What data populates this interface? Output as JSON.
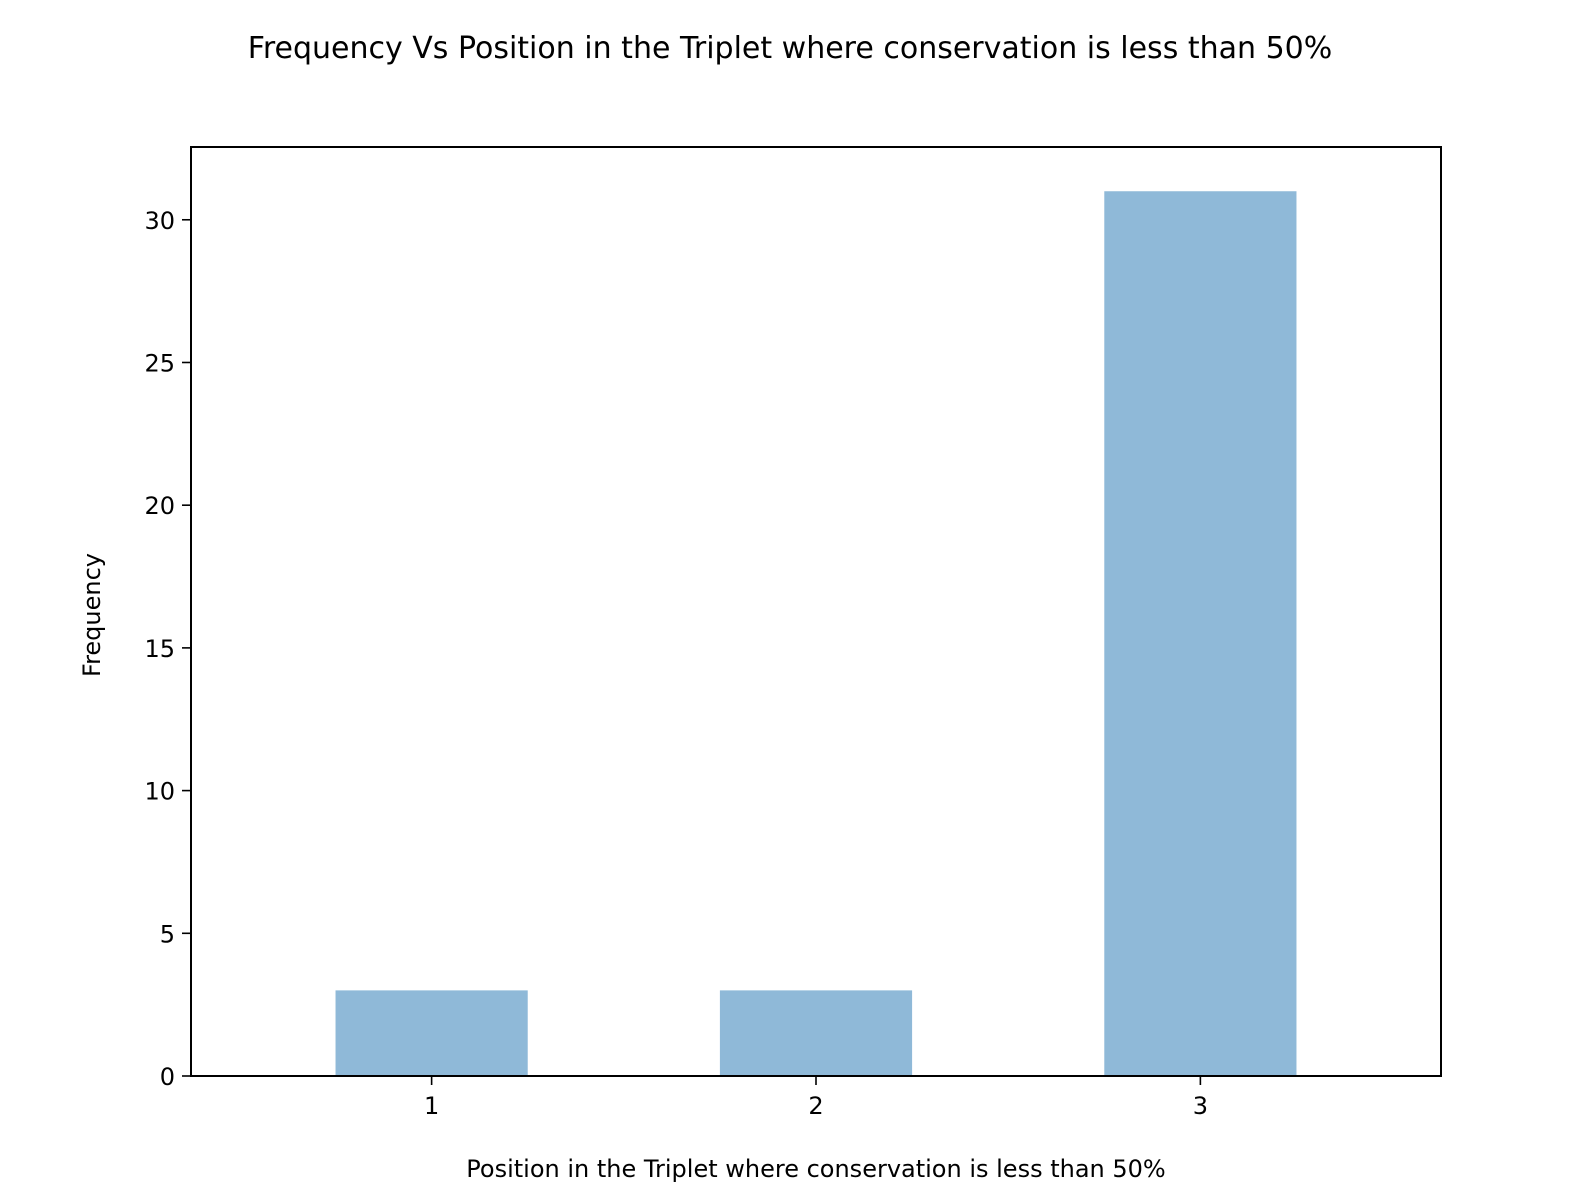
{
  "chart_data": {
    "type": "bar",
    "title": "Frequency Vs Position in the Triplet where conservation is less than 50%",
    "xlabel": "Position in the Triplet where conservation is less than 50%",
    "ylabel": "Frequency",
    "categories": [
      "1",
      "2",
      "3"
    ],
    "values": [
      3,
      3,
      31
    ],
    "ylim": [
      0,
      32.55
    ],
    "yticks": [
      0,
      5,
      10,
      15,
      20,
      25,
      30
    ],
    "bar_color": "#8fb9d8",
    "grid": false,
    "legend": "none"
  }
}
